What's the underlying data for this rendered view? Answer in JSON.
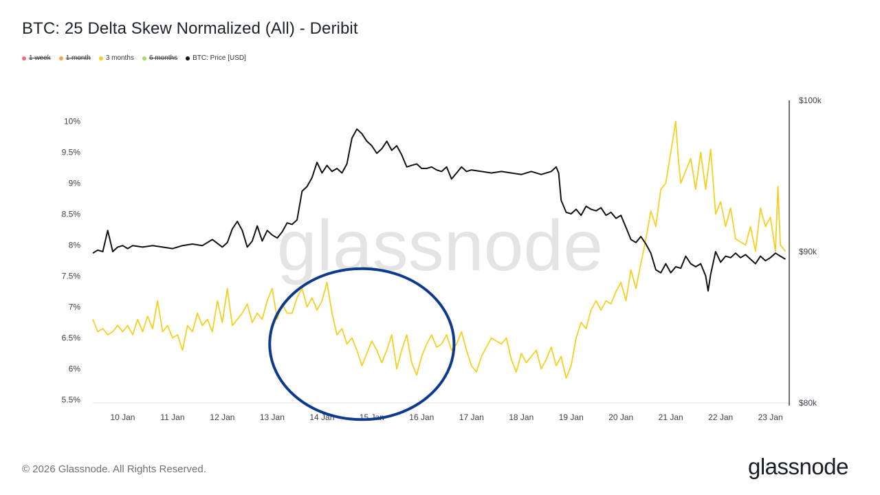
{
  "header": {
    "title": "BTC: 25 Delta Skew Normalized (All) - Deribit"
  },
  "legend": [
    {
      "label": "1 week",
      "color": "#f06b7d",
      "active": false
    },
    {
      "label": "1 month",
      "color": "#f2a65a",
      "active": false
    },
    {
      "label": "3 months",
      "color": "#f5d020",
      "active": true
    },
    {
      "label": "6 months",
      "color": "#9be15d",
      "active": false
    },
    {
      "label": "BTC: Price [USD]",
      "color": "#111111",
      "active": true
    }
  ],
  "watermark": "glassnode",
  "footer": {
    "copyright": "© 2026 Glassnode. All Rights Reserved.",
    "brand": "glassnode"
  },
  "colors": {
    "skew_line": "#f5d020",
    "price_line": "#111111",
    "annotation_circle": "#0d3a8f"
  },
  "chart_data": {
    "type": "line",
    "title": "BTC: 25 Delta Skew Normalized (All) - Deribit",
    "x_tick_labels": [
      "10 Jan",
      "11 Jan",
      "12 Jan",
      "13 Jan",
      "14 Jan",
      "15 Jan",
      "16 Jan",
      "17 Jan",
      "18 Jan",
      "19 Jan",
      "20 Jan",
      "21 Jan",
      "22 Jan",
      "23 Jan"
    ],
    "x_range_days": [
      9.4,
      23.35
    ],
    "y_left": {
      "tick_labels": [
        "5.5%",
        "6%",
        "6.5%",
        "7%",
        "7.5%",
        "8%",
        "8.5%",
        "9%",
        "9.5%",
        "10%"
      ],
      "ylim": [
        5.45,
        10.05
      ]
    },
    "y_right": {
      "tick_labels": [
        "$80k",
        "$90k",
        "$100k"
      ],
      "ylim": [
        80000,
        100000
      ]
    },
    "series": [
      {
        "name": "3 months",
        "axis": "left",
        "color": "#f5d020",
        "points": [
          [
            9.4,
            6.8
          ],
          [
            9.5,
            6.6
          ],
          [
            9.6,
            6.65
          ],
          [
            9.7,
            6.55
          ],
          [
            9.8,
            6.6
          ],
          [
            9.9,
            6.7
          ],
          [
            10.0,
            6.6
          ],
          [
            10.1,
            6.7
          ],
          [
            10.2,
            6.55
          ],
          [
            10.3,
            6.8
          ],
          [
            10.4,
            6.6
          ],
          [
            10.5,
            6.85
          ],
          [
            10.6,
            6.65
          ],
          [
            10.7,
            7.1
          ],
          [
            10.8,
            6.6
          ],
          [
            10.9,
            6.7
          ],
          [
            11.0,
            6.5
          ],
          [
            11.1,
            6.55
          ],
          [
            11.2,
            6.3
          ],
          [
            11.3,
            6.7
          ],
          [
            11.4,
            6.6
          ],
          [
            11.5,
            6.9
          ],
          [
            11.6,
            6.7
          ],
          [
            11.7,
            6.8
          ],
          [
            11.8,
            6.6
          ],
          [
            11.9,
            7.1
          ],
          [
            12.0,
            6.75
          ],
          [
            12.1,
            7.3
          ],
          [
            12.2,
            6.7
          ],
          [
            12.3,
            6.8
          ],
          [
            12.4,
            6.9
          ],
          [
            12.5,
            7.05
          ],
          [
            12.6,
            6.75
          ],
          [
            12.7,
            6.9
          ],
          [
            12.8,
            6.8
          ],
          [
            12.9,
            7.1
          ],
          [
            13.0,
            7.3
          ],
          [
            13.1,
            6.8
          ],
          [
            13.2,
            7.05
          ],
          [
            13.3,
            6.9
          ],
          [
            13.4,
            6.9
          ],
          [
            13.5,
            7.15
          ],
          [
            13.6,
            7.3
          ],
          [
            13.7,
            7.0
          ],
          [
            13.8,
            7.15
          ],
          [
            13.9,
            6.95
          ],
          [
            14.0,
            7.1
          ],
          [
            14.1,
            7.4
          ],
          [
            14.2,
            6.9
          ],
          [
            14.3,
            6.55
          ],
          [
            14.4,
            6.65
          ],
          [
            14.5,
            6.4
          ],
          [
            14.6,
            6.5
          ],
          [
            14.7,
            6.3
          ],
          [
            14.8,
            6.05
          ],
          [
            14.9,
            6.25
          ],
          [
            15.0,
            6.45
          ],
          [
            15.1,
            6.3
          ],
          [
            15.2,
            6.1
          ],
          [
            15.3,
            6.3
          ],
          [
            15.4,
            6.55
          ],
          [
            15.5,
            6.0
          ],
          [
            15.6,
            6.3
          ],
          [
            15.7,
            6.55
          ],
          [
            15.8,
            6.1
          ],
          [
            15.9,
            5.9
          ],
          [
            16.0,
            6.2
          ],
          [
            16.1,
            6.4
          ],
          [
            16.2,
            6.55
          ],
          [
            16.3,
            6.35
          ],
          [
            16.4,
            6.4
          ],
          [
            16.5,
            6.55
          ],
          [
            16.6,
            6.3
          ],
          [
            16.7,
            6.4
          ],
          [
            16.8,
            6.6
          ],
          [
            16.9,
            6.3
          ],
          [
            17.0,
            6.05
          ],
          [
            17.1,
            5.95
          ],
          [
            17.2,
            6.2
          ],
          [
            17.3,
            6.35
          ],
          [
            17.4,
            6.5
          ],
          [
            17.5,
            6.45
          ],
          [
            17.6,
            6.4
          ],
          [
            17.7,
            6.5
          ],
          [
            17.8,
            6.15
          ],
          [
            17.9,
            5.95
          ],
          [
            18.0,
            6.25
          ],
          [
            18.1,
            6.1
          ],
          [
            18.2,
            6.2
          ],
          [
            18.3,
            6.3
          ],
          [
            18.4,
            6.0
          ],
          [
            18.5,
            6.15
          ],
          [
            18.6,
            6.35
          ],
          [
            18.7,
            6.05
          ],
          [
            18.8,
            6.2
          ],
          [
            18.9,
            5.85
          ],
          [
            19.0,
            6.05
          ],
          [
            19.1,
            6.5
          ],
          [
            19.2,
            6.75
          ],
          [
            19.3,
            6.65
          ],
          [
            19.4,
            6.95
          ],
          [
            19.5,
            7.1
          ],
          [
            19.6,
            6.95
          ],
          [
            19.7,
            7.1
          ],
          [
            19.8,
            7.05
          ],
          [
            19.9,
            7.25
          ],
          [
            20.0,
            7.4
          ],
          [
            20.1,
            7.1
          ],
          [
            20.2,
            7.6
          ],
          [
            20.3,
            7.3
          ],
          [
            20.4,
            7.7
          ],
          [
            20.5,
            8.1
          ],
          [
            20.6,
            8.55
          ],
          [
            20.7,
            8.3
          ],
          [
            20.8,
            8.9
          ],
          [
            20.9,
            9.0
          ],
          [
            21.0,
            9.5
          ],
          [
            21.1,
            10.0
          ],
          [
            21.15,
            9.4
          ],
          [
            21.2,
            9.0
          ],
          [
            21.3,
            9.2
          ],
          [
            21.4,
            9.4
          ],
          [
            21.5,
            8.9
          ],
          [
            21.6,
            9.5
          ],
          [
            21.7,
            8.9
          ],
          [
            21.8,
            9.55
          ],
          [
            21.9,
            8.5
          ],
          [
            22.0,
            8.7
          ],
          [
            22.1,
            8.3
          ],
          [
            22.2,
            8.6
          ],
          [
            22.3,
            8.1
          ],
          [
            22.4,
            8.05
          ],
          [
            22.5,
            8.0
          ],
          [
            22.6,
            8.3
          ],
          [
            22.7,
            7.9
          ],
          [
            22.8,
            8.6
          ],
          [
            22.9,
            8.3
          ],
          [
            23.0,
            8.45
          ],
          [
            23.1,
            7.9
          ],
          [
            23.15,
            8.95
          ],
          [
            23.2,
            8.0
          ],
          [
            23.3,
            7.9
          ]
        ]
      },
      {
        "name": "BTC: Price [USD]",
        "axis": "right",
        "color": "#111111",
        "points": [
          [
            9.4,
            89900
          ],
          [
            9.5,
            90100
          ],
          [
            9.6,
            90000
          ],
          [
            9.7,
            91400
          ],
          [
            9.8,
            90000
          ],
          [
            9.9,
            90300
          ],
          [
            10.0,
            90400
          ],
          [
            10.1,
            90200
          ],
          [
            10.2,
            90400
          ],
          [
            10.4,
            90300
          ],
          [
            10.6,
            90400
          ],
          [
            10.8,
            90300
          ],
          [
            11.0,
            90200
          ],
          [
            11.2,
            90400
          ],
          [
            11.4,
            90500
          ],
          [
            11.6,
            90400
          ],
          [
            11.8,
            90800
          ],
          [
            12.0,
            90300
          ],
          [
            12.1,
            90600
          ],
          [
            12.2,
            91500
          ],
          [
            12.3,
            92000
          ],
          [
            12.4,
            91400
          ],
          [
            12.5,
            90300
          ],
          [
            12.6,
            90700
          ],
          [
            12.7,
            91700
          ],
          [
            12.8,
            90700
          ],
          [
            12.9,
            91400
          ],
          [
            13.0,
            91100
          ],
          [
            13.1,
            90900
          ],
          [
            13.2,
            91300
          ],
          [
            13.3,
            91900
          ],
          [
            13.4,
            91800
          ],
          [
            13.5,
            92100
          ],
          [
            13.6,
            94000
          ],
          [
            13.7,
            94300
          ],
          [
            13.8,
            94900
          ],
          [
            13.9,
            95900
          ],
          [
            14.0,
            95200
          ],
          [
            14.1,
            95700
          ],
          [
            14.2,
            95300
          ],
          [
            14.3,
            95500
          ],
          [
            14.4,
            95200
          ],
          [
            14.5,
            95800
          ],
          [
            14.6,
            97500
          ],
          [
            14.7,
            98100
          ],
          [
            14.8,
            97800
          ],
          [
            14.9,
            97300
          ],
          [
            15.0,
            97000
          ],
          [
            15.1,
            96500
          ],
          [
            15.2,
            96800
          ],
          [
            15.3,
            97300
          ],
          [
            15.4,
            96700
          ],
          [
            15.5,
            97000
          ],
          [
            15.6,
            96400
          ],
          [
            15.7,
            95600
          ],
          [
            15.8,
            95700
          ],
          [
            15.9,
            95800
          ],
          [
            16.0,
            95500
          ],
          [
            16.1,
            95500
          ],
          [
            16.2,
            95600
          ],
          [
            16.3,
            95400
          ],
          [
            16.4,
            95300
          ],
          [
            16.5,
            95600
          ],
          [
            16.6,
            94800
          ],
          [
            16.7,
            95200
          ],
          [
            16.8,
            95600
          ],
          [
            16.9,
            95300
          ],
          [
            17.0,
            95400
          ],
          [
            17.2,
            95300
          ],
          [
            17.4,
            95200
          ],
          [
            17.6,
            95300
          ],
          [
            17.8,
            95200
          ],
          [
            18.0,
            95100
          ],
          [
            18.2,
            95300
          ],
          [
            18.4,
            95100
          ],
          [
            18.5,
            95200
          ],
          [
            18.6,
            95300
          ],
          [
            18.7,
            95600
          ],
          [
            18.75,
            95200
          ],
          [
            18.8,
            93400
          ],
          [
            18.9,
            92600
          ],
          [
            19.0,
            92500
          ],
          [
            19.1,
            92800
          ],
          [
            19.2,
            92400
          ],
          [
            19.3,
            93000
          ],
          [
            19.4,
            92800
          ],
          [
            19.5,
            92700
          ],
          [
            19.6,
            92900
          ],
          [
            19.7,
            92400
          ],
          [
            19.8,
            92600
          ],
          [
            19.9,
            92200
          ],
          [
            20.0,
            92400
          ],
          [
            20.1,
            91600
          ],
          [
            20.2,
            90800
          ],
          [
            20.3,
            90600
          ],
          [
            20.4,
            91000
          ],
          [
            20.5,
            90500
          ],
          [
            20.6,
            89900
          ],
          [
            20.7,
            88800
          ],
          [
            20.8,
            88600
          ],
          [
            20.9,
            89200
          ],
          [
            21.0,
            88600
          ],
          [
            21.1,
            89000
          ],
          [
            21.2,
            88900
          ],
          [
            21.3,
            89700
          ],
          [
            21.4,
            89200
          ],
          [
            21.5,
            89000
          ],
          [
            21.6,
            89200
          ],
          [
            21.7,
            88400
          ],
          [
            21.75,
            87400
          ],
          [
            21.8,
            88500
          ],
          [
            21.9,
            90000
          ],
          [
            22.0,
            89300
          ],
          [
            22.1,
            89700
          ],
          [
            22.2,
            89600
          ],
          [
            22.3,
            89900
          ],
          [
            22.4,
            89600
          ],
          [
            22.5,
            89800
          ],
          [
            22.6,
            89500
          ],
          [
            22.7,
            89200
          ],
          [
            22.8,
            89700
          ],
          [
            22.9,
            89400
          ],
          [
            23.0,
            89600
          ],
          [
            23.1,
            89900
          ],
          [
            23.2,
            89700
          ],
          [
            23.3,
            89500
          ]
        ]
      }
    ],
    "annotation": {
      "type": "ellipse",
      "color": "#0d3a8f",
      "center": [
        14.8,
        6.4
      ],
      "x_radius_days": 1.85,
      "y_radius_pct": 1.22
    }
  }
}
